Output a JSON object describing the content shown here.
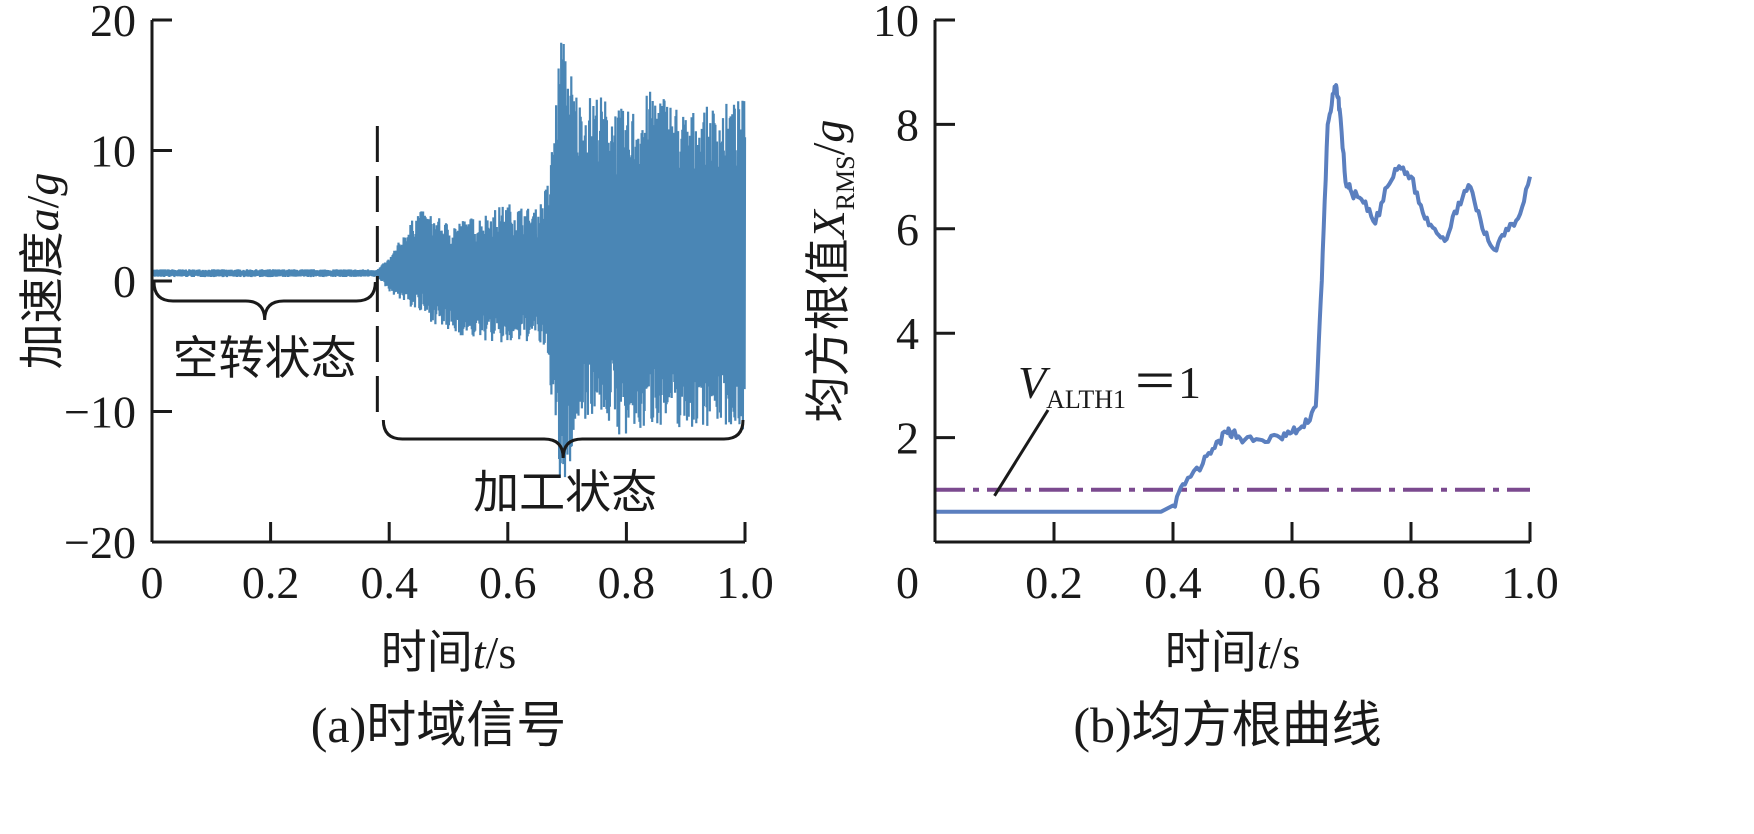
{
  "chart_data": [
    {
      "type": "line",
      "panel_caption": "(a)时域信号",
      "xlabel_prefix": "时间",
      "xlabel_var": "t",
      "xlabel_unit": "/s",
      "ylabel_prefix": "加速度",
      "ylabel_var": "a",
      "ylabel_unit_sep": "/",
      "ylabel_unit": "g",
      "xlim": [
        0,
        1.0
      ],
      "ylim": [
        -20,
        20
      ],
      "xticks": [
        0,
        0.2,
        0.4,
        0.6,
        0.8,
        1.0
      ],
      "xtick_labels": [
        "0",
        "0.2",
        "0.4",
        "0.6",
        "0.8",
        "1.0"
      ],
      "yticks": [
        -20,
        -10,
        0,
        10,
        20
      ],
      "ytick_labels": [
        "−20",
        "−10",
        "0",
        "10",
        "20"
      ],
      "line_color": "#4a86b5",
      "divider_x": 0.38,
      "annotations": [
        {
          "text": "空转状态",
          "x_range": [
            0,
            0.38
          ],
          "side": "below"
        },
        {
          "text": "加工状态",
          "x_range": [
            0.38,
            1.0
          ],
          "side": "below"
        }
      ],
      "envelope": [
        {
          "x": 0.0,
          "min": 0.3,
          "max": 0.9
        },
        {
          "x": 0.38,
          "min": 0.3,
          "max": 0.9
        },
        {
          "x": 0.4,
          "min": -0.8,
          "max": 1.8
        },
        {
          "x": 0.45,
          "min": -2.5,
          "max": 5.5
        },
        {
          "x": 0.5,
          "min": -4.0,
          "max": 4.5
        },
        {
          "x": 0.55,
          "min": -4.5,
          "max": 5.0
        },
        {
          "x": 0.6,
          "min": -5.0,
          "max": 6.0
        },
        {
          "x": 0.65,
          "min": -4.5,
          "max": 5.5
        },
        {
          "x": 0.67,
          "min": -7.0,
          "max": 8.0
        },
        {
          "x": 0.69,
          "min": -17.5,
          "max": 19.3
        },
        {
          "x": 0.72,
          "min": -11.0,
          "max": 14.0
        },
        {
          "x": 0.75,
          "min": -10.0,
          "max": 14.5
        },
        {
          "x": 0.8,
          "min": -12.5,
          "max": 13.0
        },
        {
          "x": 0.85,
          "min": -11.0,
          "max": 15.0
        },
        {
          "x": 0.9,
          "min": -11.5,
          "max": 13.0
        },
        {
          "x": 0.95,
          "min": -11.0,
          "max": 13.5
        },
        {
          "x": 1.0,
          "min": -11.5,
          "max": 14.0
        }
      ]
    },
    {
      "type": "line",
      "panel_caption": "(b)均方根曲线",
      "xlabel_prefix": "时间",
      "xlabel_var": "t",
      "xlabel_unit": "/s",
      "ylabel_prefix": "均方根值",
      "ylabel_var": "X",
      "ylabel_sub": "RMS",
      "ylabel_unit_sep": "/",
      "ylabel_unit": "g",
      "xlim": [
        0,
        1.0
      ],
      "ylim": [
        0,
        10
      ],
      "xticks": [
        0,
        0.2,
        0.4,
        0.6,
        0.8,
        1.0
      ],
      "xtick_labels": [
        "0",
        "0.2",
        "0.4",
        "0.6",
        "0.8",
        "1.0"
      ],
      "yticks": [
        2,
        4,
        6,
        8,
        10
      ],
      "ytick_labels": [
        "2",
        "4",
        "6",
        "8",
        "10"
      ],
      "corner_label": "0",
      "series": [
        {
          "color": "#5b7fbf",
          "x": [
            0.0,
            0.05,
            0.1,
            0.2,
            0.3,
            0.38,
            0.4,
            0.42,
            0.45,
            0.47,
            0.49,
            0.5,
            0.52,
            0.55,
            0.58,
            0.6,
            0.62,
            0.64,
            0.65,
            0.66,
            0.67,
            0.675,
            0.68,
            0.69,
            0.7,
            0.72,
            0.74,
            0.76,
            0.78,
            0.8,
            0.82,
            0.84,
            0.86,
            0.88,
            0.9,
            0.92,
            0.94,
            0.96,
            0.98,
            1.0
          ],
          "y": [
            0.58,
            0.58,
            0.58,
            0.58,
            0.58,
            0.58,
            0.7,
            1.1,
            1.5,
            1.8,
            2.1,
            2.1,
            1.95,
            1.95,
            2.0,
            2.1,
            2.2,
            2.6,
            5.0,
            8.0,
            8.6,
            8.7,
            8.3,
            6.9,
            6.7,
            6.5,
            6.1,
            6.8,
            7.2,
            7.0,
            6.3,
            6.0,
            5.8,
            6.5,
            6.8,
            6.0,
            5.6,
            6.0,
            6.2,
            7.0
          ]
        }
      ],
      "threshold": {
        "value": 1,
        "color": "#7b4a8f",
        "label_var": "V",
        "label_sub": "ALTH1",
        "label_eq": "＝1"
      }
    }
  ]
}
